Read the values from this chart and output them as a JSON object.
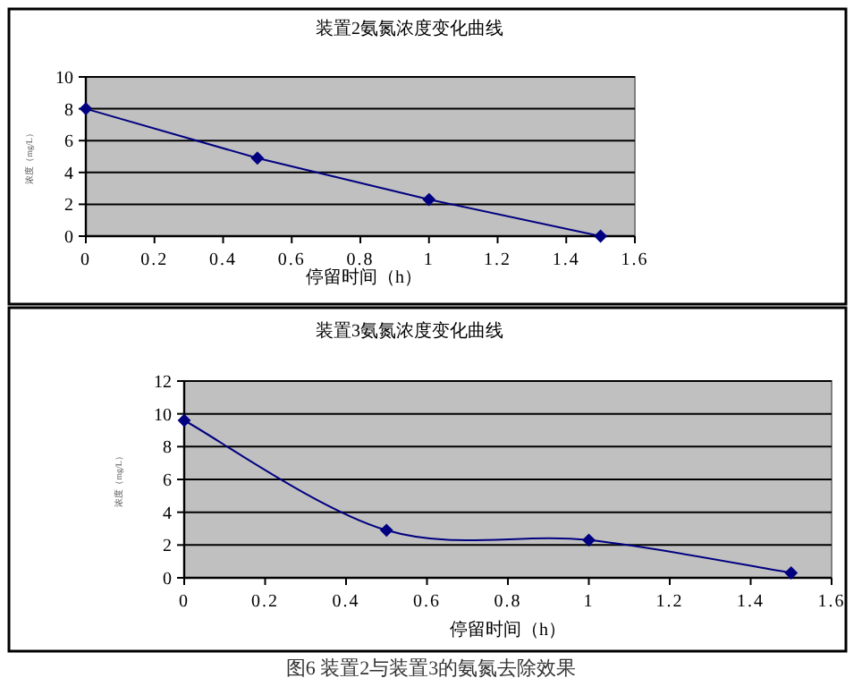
{
  "chart_data": [
    {
      "type": "line",
      "title": "装置2氨氮浓度变化曲线",
      "xlabel": "停留时间（h）",
      "ylabel": "浓度（mg/L）",
      "x": [
        0,
        0.5,
        1,
        1.5
      ],
      "series": [
        {
          "color": "#000080",
          "values": [
            8,
            4.9,
            2.3,
            0
          ]
        }
      ],
      "xlim": [
        0,
        1.6
      ],
      "xticks": [
        0,
        0.2,
        0.4,
        0.6,
        0.8,
        1,
        1.2,
        1.4,
        1.6
      ],
      "ylim": [
        0,
        10
      ],
      "yticks": [
        0,
        2,
        4,
        6,
        8,
        10
      ],
      "grid": "y",
      "marker": "diamond",
      "line_style": "solid"
    },
    {
      "type": "line",
      "title": "装置3氨氮浓度变化曲线",
      "xlabel": "停留时间（h）",
      "ylabel": "浓度（mg/L）",
      "x": [
        0,
        0.5,
        1,
        1.5
      ],
      "series": [
        {
          "color": "#000080",
          "values": [
            9.6,
            2.9,
            2.3,
            0.3
          ]
        }
      ],
      "xlim": [
        0,
        1.6
      ],
      "xticks": [
        0,
        0.2,
        0.4,
        0.6,
        0.8,
        1,
        1.2,
        1.4,
        1.6
      ],
      "ylim": [
        0,
        12
      ],
      "yticks": [
        0,
        2,
        4,
        6,
        8,
        10,
        12
      ],
      "grid": "y",
      "marker": "diamond",
      "line_style": "solid",
      "annotations": [
        "图6  装置2与装置3的氨氮去除效果"
      ]
    }
  ]
}
